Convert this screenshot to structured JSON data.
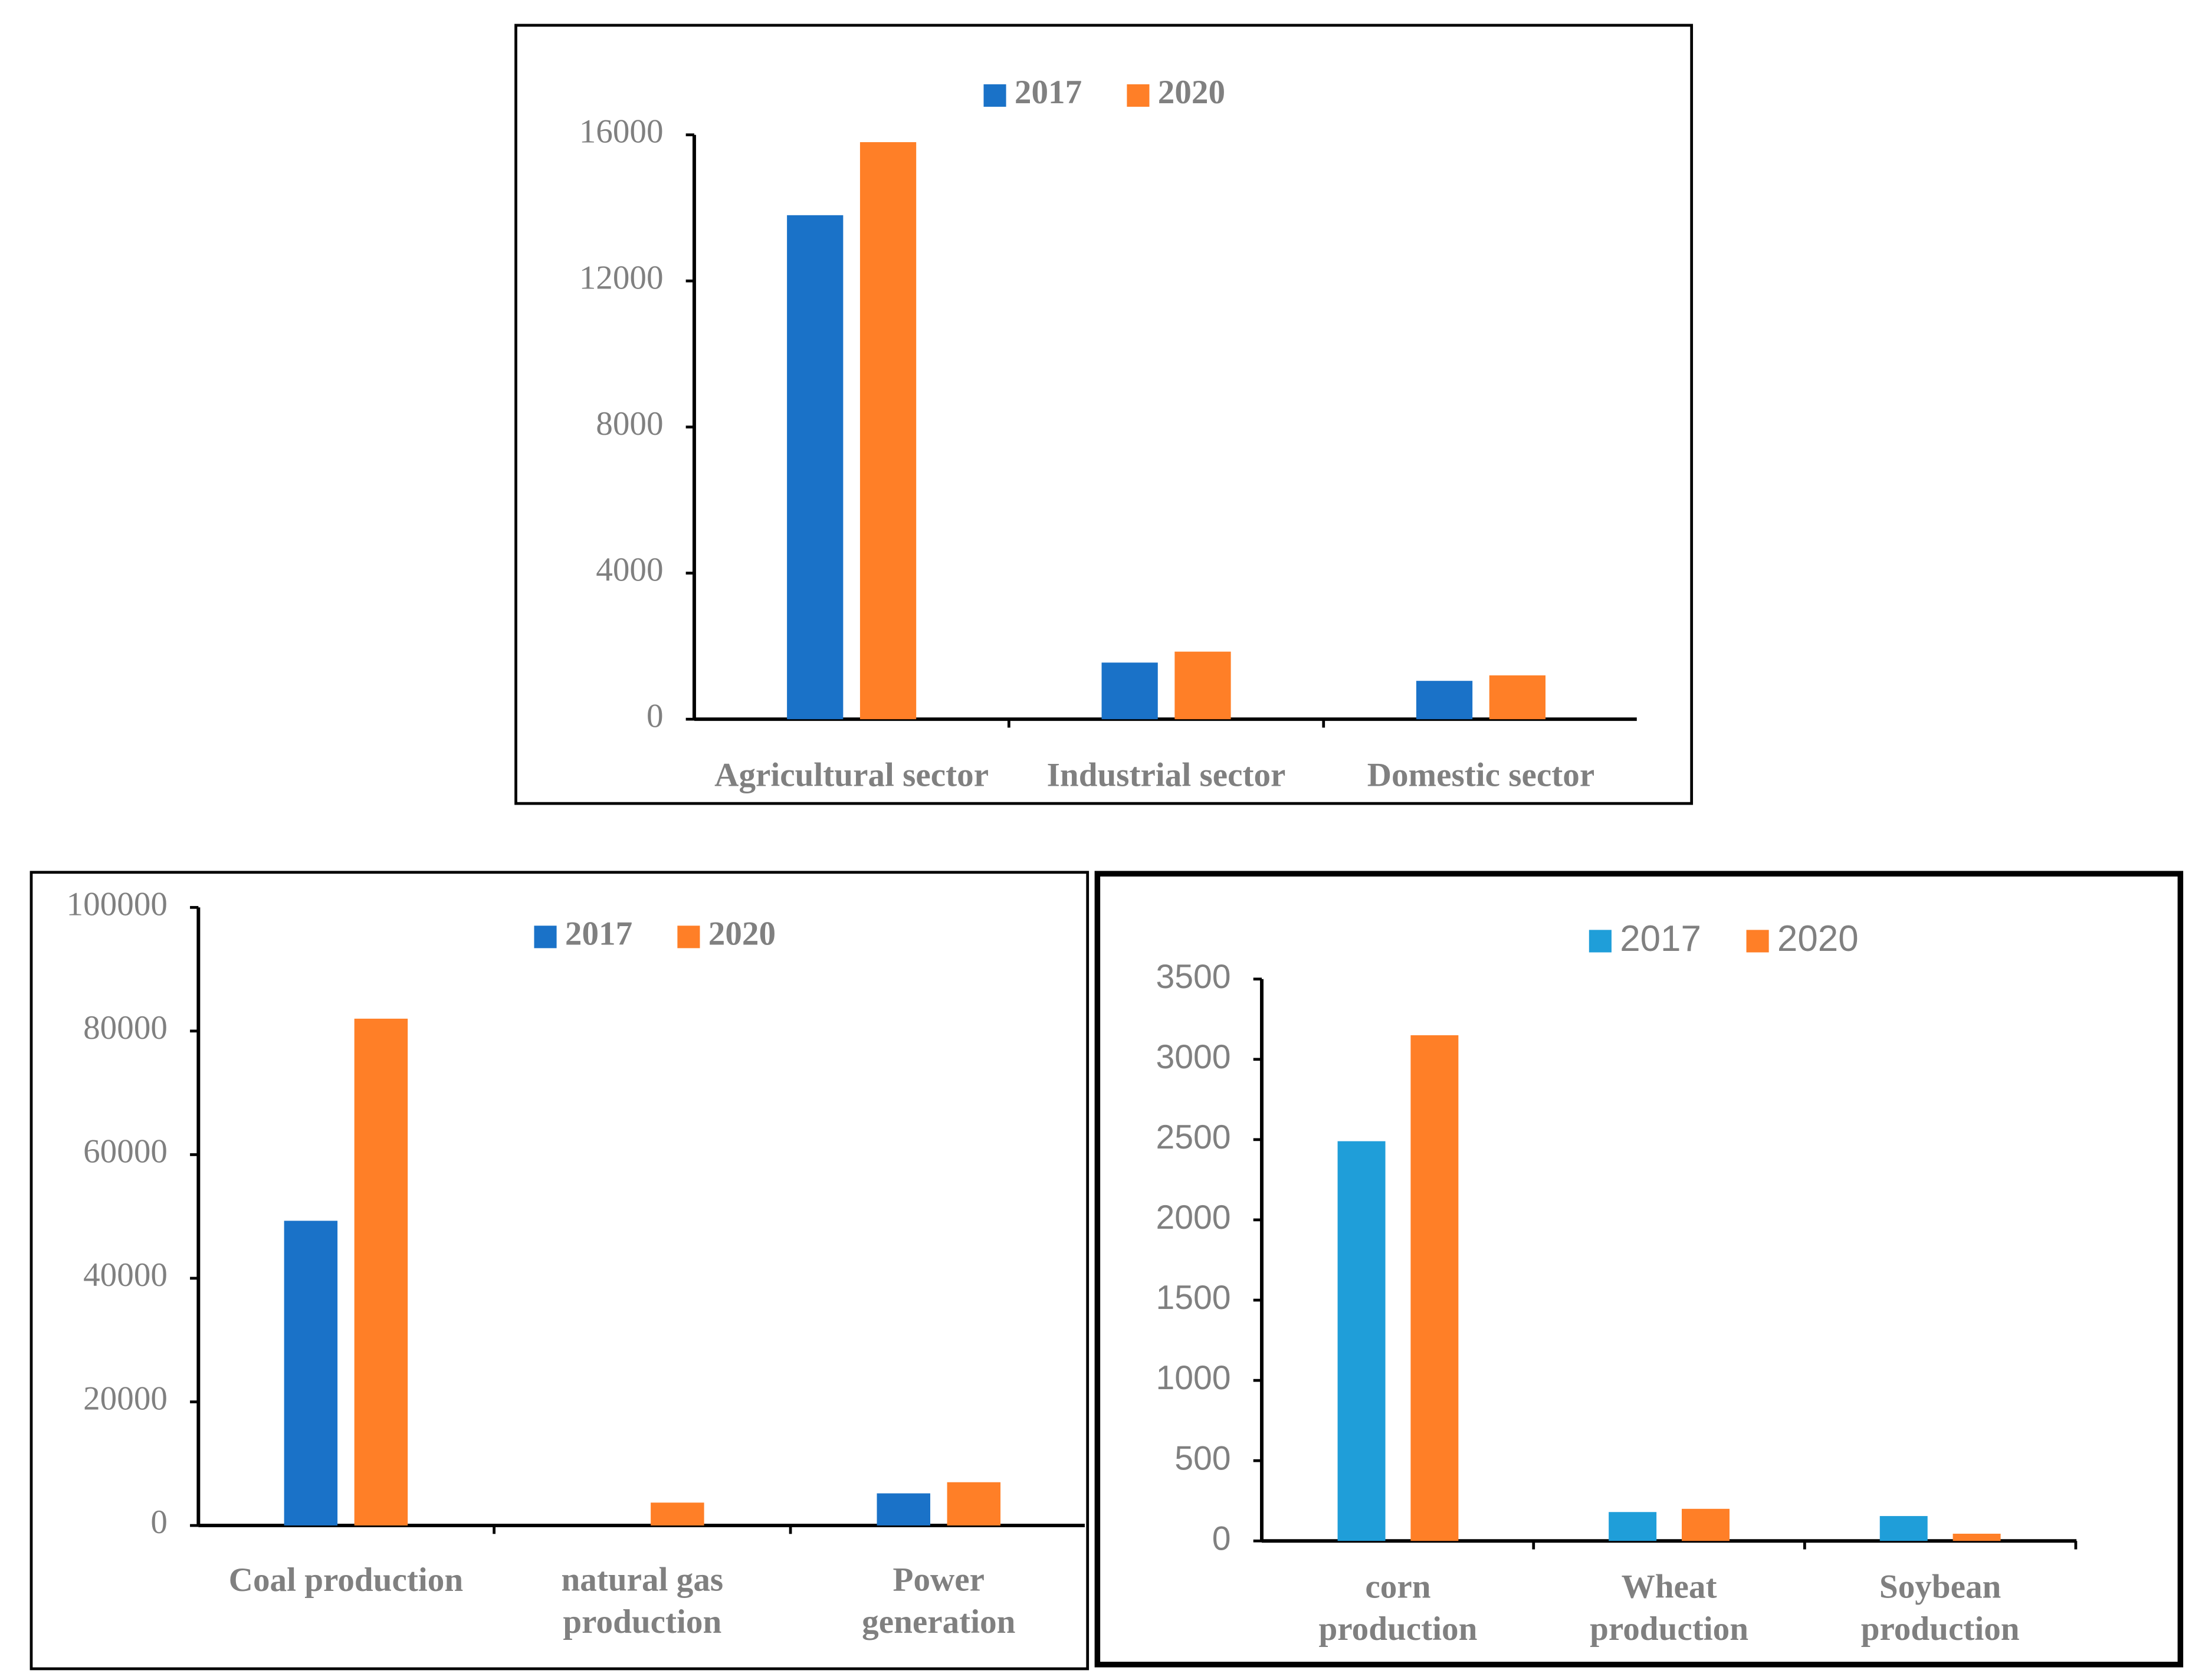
{
  "chart_data": [
    {
      "type": "bar",
      "categories": [
        "Agricultural sector",
        "Industrial sector",
        "Domestic sector"
      ],
      "series": [
        {
          "name": "2017",
          "color": "#1a72c8",
          "values": [
            13800,
            1550,
            1050
          ]
        },
        {
          "name": "2020",
          "color": "#ff7f27",
          "values": [
            15800,
            1850,
            1200
          ]
        }
      ],
      "ylim": [
        0,
        16000
      ],
      "yticks": [
        0,
        4000,
        8000,
        12000,
        16000
      ]
    },
    {
      "type": "bar",
      "categories": [
        "Coal production",
        "natural gas\nproduction",
        "Power\ngeneration"
      ],
      "series": [
        {
          "name": "2017",
          "color": "#1a72c8",
          "values": [
            49300,
            null,
            5200
          ]
        },
        {
          "name": "2020",
          "color": "#ff7f27",
          "values": [
            82000,
            3700,
            7000
          ]
        }
      ],
      "ylim": [
        0,
        100000
      ],
      "yticks": [
        0,
        20000,
        40000,
        60000,
        80000,
        100000
      ]
    },
    {
      "type": "bar",
      "categories": [
        "corn\nproduction",
        "Wheat\nproduction",
        "Soybean\nproduction"
      ],
      "series": [
        {
          "name": "2017",
          "color": "#1f9ed9",
          "values": [
            2490,
            180,
            155
          ]
        },
        {
          "name": "2020",
          "color": "#ff7f27",
          "values": [
            3150,
            200,
            45
          ]
        }
      ],
      "ylim": [
        0,
        3500
      ],
      "yticks": [
        0,
        500,
        1000,
        1500,
        2000,
        2500,
        3000,
        3500
      ]
    }
  ]
}
